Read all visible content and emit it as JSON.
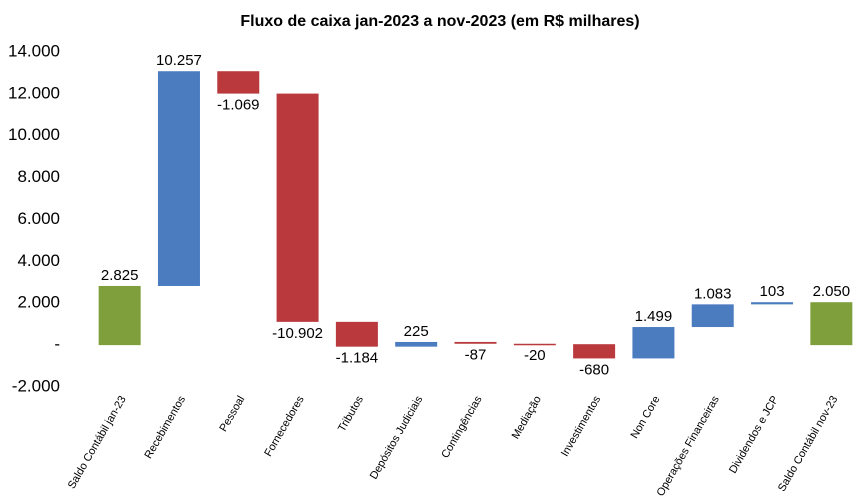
{
  "chart_data": {
    "type": "waterfall",
    "title": "Fluxo de caixa jan-2023 a nov-2023 (em R$ milhares)",
    "categories": [
      "Saldo Contábil jan-23",
      "Recebimentos",
      "Pessoal",
      "Fornecedores",
      "Tributos",
      "Depósitos Judiciais",
      "Contingências",
      "Mediação",
      "Investimentos",
      "Non Core",
      "Operações Financeiras",
      "Dividendos e JCP",
      "Saldo Contábil nov-23"
    ],
    "values": [
      2825,
      10257,
      -1069,
      -10902,
      -1184,
      225,
      -87,
      -20,
      -680,
      1499,
      1083,
      103,
      2050
    ],
    "value_labels": [
      "2.825",
      "10.257",
      "-1.069",
      "-10.902",
      "-1.184",
      "225",
      "-87",
      "-20",
      "-680",
      "1.499",
      "1.083",
      "103",
      "2.050"
    ],
    "measure": [
      "total",
      "relative",
      "relative",
      "relative",
      "relative",
      "relative",
      "relative",
      "relative",
      "relative",
      "relative",
      "relative",
      "relative",
      "total"
    ],
    "colors": {
      "total": "#7f9f3c",
      "increase": "#4a7cbf",
      "decrease": "#b9393c"
    },
    "ylim": [
      -2000,
      14000
    ],
    "yticks": [
      {
        "value": -2000,
        "label": "-2.000"
      },
      {
        "value": 0,
        "label": "-"
      },
      {
        "value": 2000,
        "label": "2.000"
      },
      {
        "value": 4000,
        "label": "4.000"
      },
      {
        "value": 6000,
        "label": "6.000"
      },
      {
        "value": 8000,
        "label": "8.000"
      },
      {
        "value": 10000,
        "label": "10.000"
      },
      {
        "value": 12000,
        "label": "12.000"
      },
      {
        "value": 14000,
        "label": "14.000"
      }
    ],
    "grid": false
  }
}
